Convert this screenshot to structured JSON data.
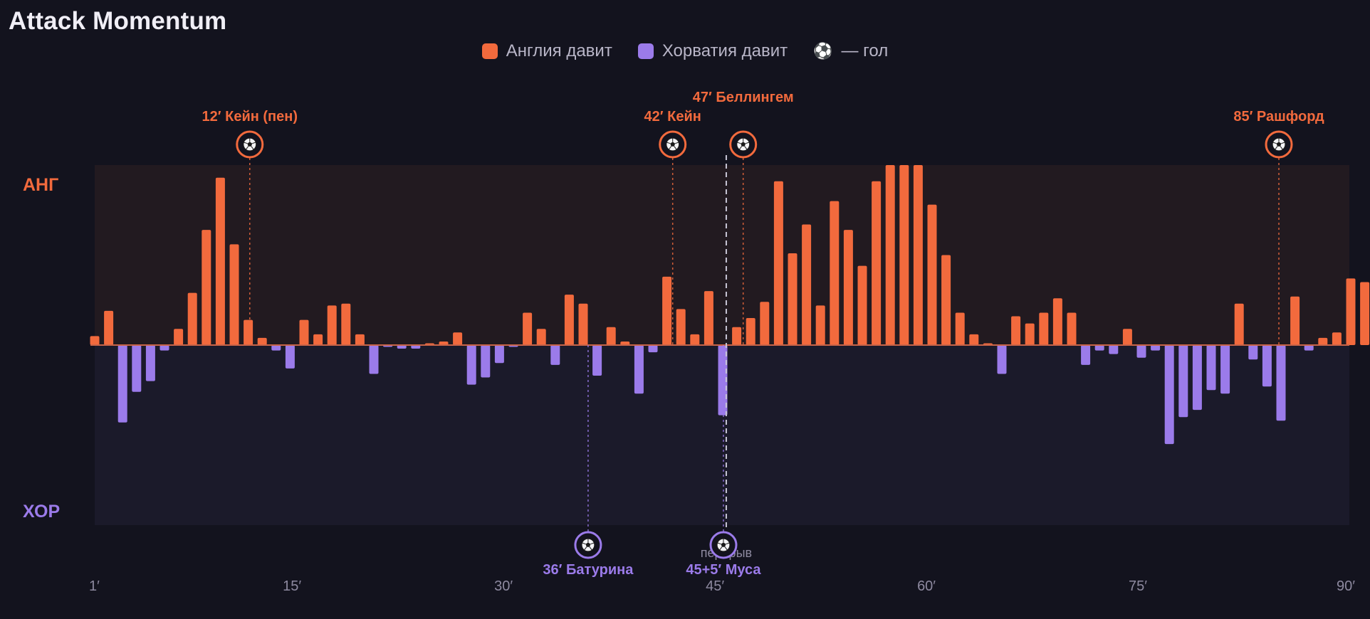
{
  "title": "Attack Momentum",
  "legend": {
    "england": "Англия давит",
    "croatia": "Хорватия давит",
    "goal_icon": "⚽",
    "goal": "— гол"
  },
  "colors": {
    "england": "#f26a3d",
    "croatia": "#9b7bea",
    "background": "#13131e",
    "england_zone": "#221a20",
    "croatia_zone": "#1b1a2a"
  },
  "chart_data": {
    "type": "bar",
    "side_labels": {
      "top": "АНГ",
      "bottom": "ХОР"
    },
    "x_ticks": [
      {
        "value": 1,
        "label": "1′"
      },
      {
        "value": 15,
        "label": "15′"
      },
      {
        "value": 30,
        "label": "30′"
      },
      {
        "value": 45,
        "label": "45′"
      },
      {
        "value": 60,
        "label": "60′"
      },
      {
        "value": 75,
        "label": "75′"
      },
      {
        "value": 90,
        "label": "90′"
      }
    ],
    "x_range": [
      1,
      90
    ],
    "ylim": [
      -100,
      100
    ],
    "halftime": {
      "minute": 45.8,
      "label": "перерыв"
    },
    "minutes": [
      1,
      2,
      3,
      4,
      5,
      6,
      7,
      8,
      9,
      10,
      11,
      12,
      13,
      14,
      15,
      16,
      17,
      18,
      19,
      20,
      21,
      22,
      23,
      24,
      25,
      26,
      27,
      28,
      29,
      30,
      31,
      32,
      33,
      34,
      35,
      36,
      37,
      38,
      39,
      40,
      41,
      42,
      43,
      44,
      45,
      "45+1",
      "45+2",
      "45+3",
      "45+4",
      "45+5",
      46,
      47,
      48,
      49,
      50,
      51,
      52,
      53,
      54,
      55,
      56,
      57,
      58,
      59,
      60,
      61,
      62,
      63,
      64,
      65,
      66,
      67,
      68,
      69,
      70,
      71,
      72,
      73,
      74,
      75,
      76,
      77,
      78,
      79,
      80,
      81,
      82,
      83,
      84,
      85,
      86,
      87,
      88,
      89,
      90
    ],
    "values": [
      5,
      19,
      -43,
      -26,
      -20,
      -3,
      9,
      29,
      64,
      93,
      56,
      14,
      4,
      -3,
      -13,
      14,
      6,
      22,
      23,
      6,
      -16,
      -1,
      -2,
      -2,
      1,
      2,
      7,
      -22,
      -18,
      -10,
      -1,
      18,
      9,
      -11,
      28,
      23,
      -17,
      10,
      2,
      -27,
      -4,
      38,
      20,
      6,
      30,
      -39,
      10,
      15,
      24,
      91,
      51,
      67,
      22,
      80,
      64,
      44,
      91,
      100,
      100,
      100,
      78,
      50,
      18,
      6,
      1,
      -16,
      16,
      12,
      18,
      26,
      18,
      -11,
      -3,
      -5,
      9,
      -7,
      -3,
      -55,
      -40,
      -36,
      -25,
      -27,
      23,
      -8,
      -23,
      -42,
      27,
      -3,
      4,
      7,
      37,
      35
    ]
  },
  "goals": [
    {
      "label": "12′ Кейн (пен)",
      "minute": 12,
      "team": "england"
    },
    {
      "label": "36′ Батурина",
      "minute": 36,
      "team": "croatia"
    },
    {
      "label": "42′ Кейн",
      "minute": 42,
      "team": "england"
    },
    {
      "label": "45+5′ Муса",
      "minute": 45.6,
      "team": "croatia"
    },
    {
      "label": "47′ Беллингем",
      "minute": 47,
      "team": "england"
    },
    {
      "label": "85′ Рашфорд",
      "minute": 85,
      "team": "england"
    }
  ]
}
